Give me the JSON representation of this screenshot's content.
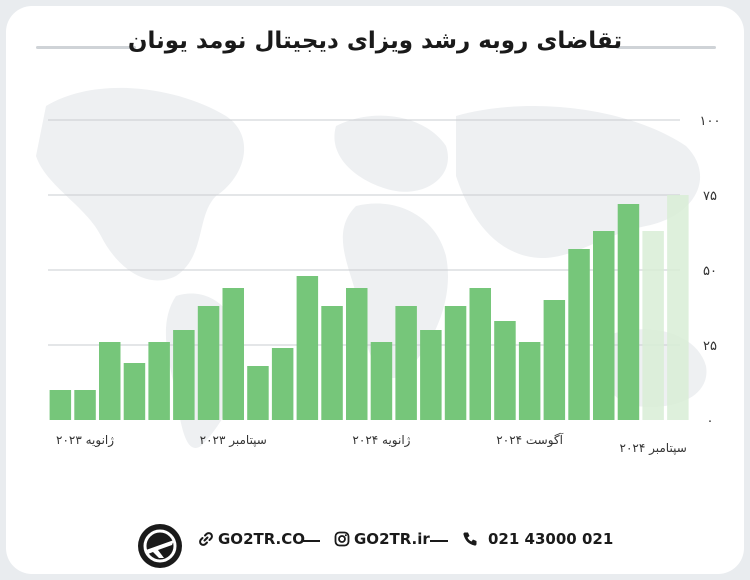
{
  "title": "تقاضای روبه رشد ویزای دیجیتال نومد یونان",
  "chart_data": {
    "type": "bar",
    "title": "تقاضای روبه رشد ویزای دیجیتال نومد یونان",
    "xlabel": "",
    "ylabel": "",
    "ylim": [
      0,
      100
    ],
    "yticks": [
      "۰",
      "۲۵",
      "۵۰",
      "۷۵",
      "۱۰۰"
    ],
    "ytick_values": [
      0,
      25,
      50,
      75,
      100
    ],
    "grid": true,
    "x_tick_labels": [
      "ژانویه ۲۰۲۳",
      "سپتامبر ۲۰۲۳",
      "ژانویه ۲۰۲۴",
      "آگوست ۲۰۲۴",
      "سپتامبر ۲۰۲۴"
    ],
    "x_tick_indices": [
      1,
      7,
      13,
      19,
      24
    ],
    "values": [
      10,
      10,
      26,
      19,
      26,
      30,
      38,
      44,
      18,
      24,
      48,
      38,
      44,
      26,
      38,
      30,
      38,
      44,
      33,
      26,
      40,
      57,
      63,
      72
    ],
    "projected_values": [
      63,
      75
    ],
    "colors": {
      "bar": "#76c67a",
      "projected": "#d8edd6",
      "grid": "#c9ccd0",
      "text": "#333333"
    }
  },
  "footer": {
    "phone": "021 43000 021",
    "instagram": "GO2TR.ir",
    "website": "GO2TR.CO",
    "brand_icon": "airplane-logo-icon",
    "phone_icon": "phone-icon",
    "instagram_icon": "instagram-icon",
    "link_icon": "link-icon"
  }
}
